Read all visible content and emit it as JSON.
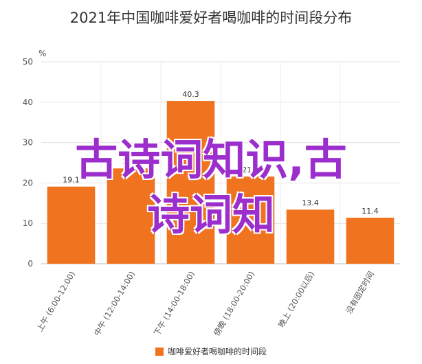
{
  "chart_data": {
    "type": "bar",
    "title": "2021年中国咖啡爱好者喝咖啡的时间段分布",
    "unit_label": "%",
    "categories": [
      "上午 (6:00-12:00)",
      "中午 (12:00-14:00)",
      "下午 (14:00-18:00)",
      "傍晚 (18:00-20:00)",
      "晚上 (20:00以后)",
      "没有固定时间"
    ],
    "series": [
      {
        "name": "咖啡爱好者喝咖啡的时间段",
        "values": [
          19.1,
          23.6,
          40.3,
          21.6,
          13.4,
          11.4
        ]
      }
    ],
    "data_labels": [
      "19.1",
      "23.6",
      "40.3",
      "21.6",
      "13.4",
      "11.4"
    ],
    "ylim": [
      0,
      50
    ],
    "yticks": [
      0,
      10,
      20,
      30,
      40,
      50
    ],
    "grid": true,
    "legend_position": "bottom",
    "bar_color": "#f07420"
  },
  "watermark": {
    "line1": "古诗词知识,古",
    "line2": "诗词知"
  }
}
